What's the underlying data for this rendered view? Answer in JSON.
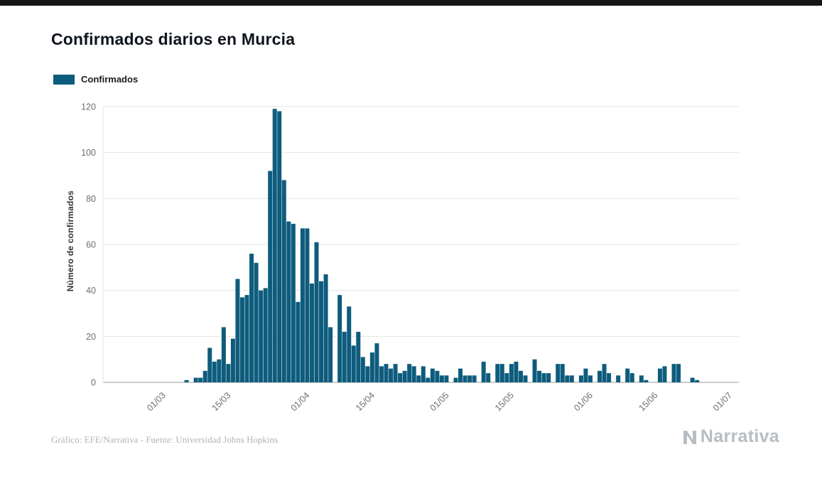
{
  "page": {
    "title": "Confirmados diarios en Murcia",
    "footer": "Gráfico: EFE/Narrativa - Fuente: Universidad Johns Hopkins",
    "brand": "Narrativa"
  },
  "legend": {
    "label": "Confirmados"
  },
  "colors": {
    "bar": "#0e5c7d",
    "grid": "#e4e4e4",
    "axis": "#9a9a9a",
    "tick_text": "#6e6e6e",
    "title_text": "#0d141c",
    "muted_text": "#b3b3b3",
    "brand_gray": "#b7bdc3"
  },
  "chart_data": {
    "type": "bar",
    "title": "Confirmados diarios en Murcia",
    "series_name": "Confirmados",
    "xlabel": "",
    "ylabel": "Número de confirmados",
    "ylim": [
      0,
      120
    ],
    "y_ticks": [
      0,
      20,
      40,
      60,
      80,
      100,
      120
    ],
    "grid": true,
    "legend_position": "top-left",
    "x_domain": {
      "start": "2020-02-17",
      "end": "2020-07-03"
    },
    "x_ticks": [
      {
        "label": "01/03",
        "date": "2020-03-01"
      },
      {
        "label": "15/03",
        "date": "2020-03-15"
      },
      {
        "label": "01/04",
        "date": "2020-04-01"
      },
      {
        "label": "15/04",
        "date": "2020-04-15"
      },
      {
        "label": "01/05",
        "date": "2020-05-01"
      },
      {
        "label": "15/05",
        "date": "2020-05-15"
      },
      {
        "label": "01/06",
        "date": "2020-06-01"
      },
      {
        "label": "15/06",
        "date": "2020-06-15"
      },
      {
        "label": "01/07",
        "date": "2020-07-01"
      }
    ],
    "start_date": "2020-03-01",
    "values": [
      0,
      0,
      0,
      0,
      0,
      1,
      0,
      2,
      2,
      5,
      15,
      9,
      10,
      24,
      8,
      19,
      45,
      37,
      38,
      56,
      52,
      40,
      41,
      92,
      119,
      118,
      88,
      70,
      69,
      35,
      67,
      67,
      43,
      61,
      44,
      47,
      24,
      0,
      38,
      22,
      33,
      16,
      22,
      11,
      7,
      13,
      17,
      7,
      8,
      6,
      8,
      4,
      5,
      8,
      7,
      3,
      7,
      2,
      6,
      5,
      3,
      3,
      0,
      2,
      6,
      3,
      3,
      3,
      0,
      9,
      4,
      0,
      8,
      8,
      4,
      8,
      9,
      5,
      3,
      0,
      10,
      5,
      4,
      4,
      0,
      8,
      8,
      3,
      3,
      0,
      3,
      6,
      3,
      0,
      5,
      8,
      4,
      0,
      3,
      0,
      6,
      4,
      0,
      3,
      1,
      0,
      0,
      6,
      7,
      0,
      8,
      8,
      0,
      0,
      2,
      1,
      0,
      0,
      0,
      0,
      0,
      0,
      0
    ]
  }
}
